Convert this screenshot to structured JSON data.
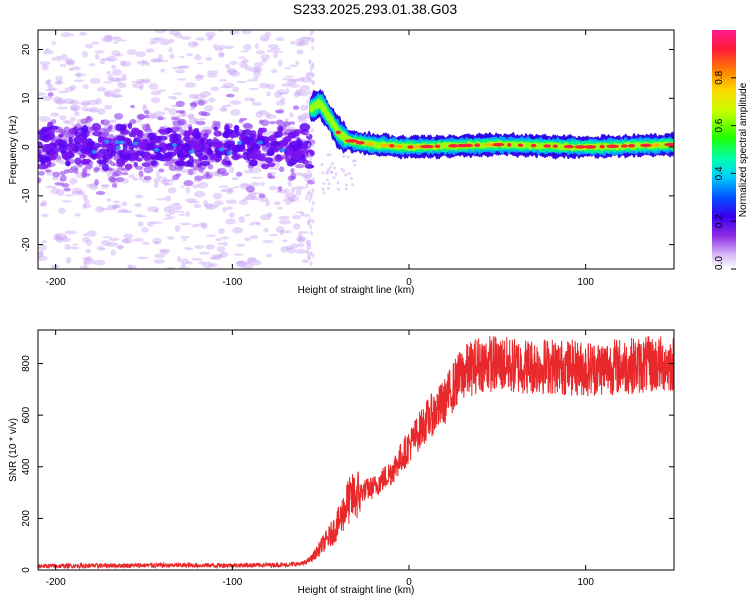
{
  "chart_data": [
    {
      "type": "heatmap",
      "title": "S233.2025.293.01.38.G03",
      "xlabel": "Height of straight line (km)",
      "ylabel": "Frequency (Hz)",
      "xlim": [
        -210,
        150
      ],
      "ylim": [
        -25,
        24
      ],
      "xticks": [
        -200,
        -100,
        0,
        100
      ],
      "yticks": [
        -20,
        -10,
        0,
        10,
        20
      ],
      "colorbar": {
        "label": "Normalized spectral amplitude",
        "range": [
          0,
          1
        ],
        "ticks": [
          "0.0",
          "0.2",
          "0.4",
          "0.6",
          "0.8"
        ]
      },
      "ridge": {
        "x": [
          -210,
          -150,
          -100,
          -60,
          -55,
          -50,
          -45,
          -40,
          -35,
          -30,
          -20,
          0,
          50,
          100,
          150
        ],
        "frequency": [
          0,
          0,
          0,
          0,
          8,
          9,
          6,
          3,
          1.5,
          1,
          0.5,
          0,
          0.5,
          0,
          0.5
        ]
      }
    },
    {
      "type": "line",
      "xlabel": "Height of straight line (km)",
      "ylabel": "SNR (10 * v/v)",
      "xlim": [
        -210,
        150
      ],
      "ylim": [
        0,
        930
      ],
      "xticks": [
        -200,
        -100,
        0,
        100
      ],
      "yticks": [
        0,
        200,
        400,
        600,
        800
      ],
      "color": "#e8282a",
      "series": [
        {
          "name": "SNR",
          "x": [
            -210,
            -150,
            -100,
            -70,
            -60,
            -55,
            -50,
            -45,
            -40,
            -35,
            -30,
            -25,
            -20,
            -10,
            0,
            10,
            20,
            25,
            30,
            40,
            50,
            60,
            80,
            100,
            120,
            150
          ],
          "values": [
            15,
            18,
            18,
            20,
            25,
            45,
            90,
            130,
            180,
            260,
            290,
            310,
            320,
            380,
            480,
            580,
            650,
            710,
            760,
            800,
            800,
            790,
            790,
            780,
            790,
            800
          ]
        }
      ]
    }
  ]
}
